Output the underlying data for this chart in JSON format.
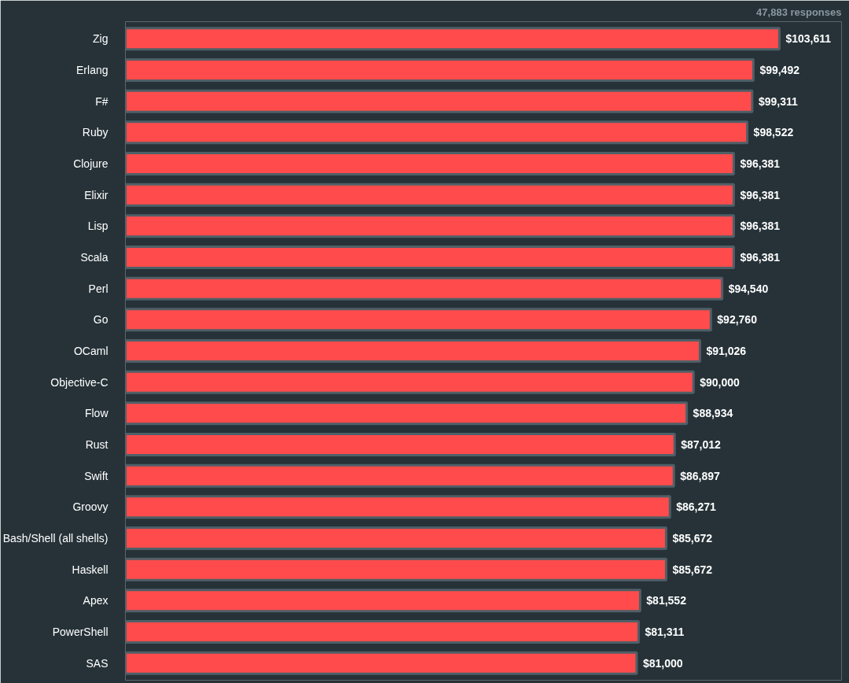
{
  "chart_data": {
    "type": "bar",
    "orientation": "horizontal",
    "categories": [
      "Zig",
      "Erlang",
      "F#",
      "Ruby",
      "Clojure",
      "Elixir",
      "Lisp",
      "Scala",
      "Perl",
      "Go",
      "OCaml",
      "Objective-C",
      "Flow",
      "Rust",
      "Swift",
      "Groovy",
      "Bash/Shell (all shells)",
      "Haskell",
      "Apex",
      "PowerShell",
      "SAS"
    ],
    "values": [
      103611,
      99492,
      99311,
      98522,
      96381,
      96381,
      96381,
      96381,
      94540,
      92760,
      91026,
      90000,
      88934,
      87012,
      86897,
      86271,
      85672,
      85672,
      81552,
      81311,
      81000
    ],
    "value_labels": [
      "$103,611",
      "$99,492",
      "$99,311",
      "$98,522",
      "$96,381",
      "$96,381",
      "$96,381",
      "$96,381",
      "$94,540",
      "$92,760",
      "$91,026",
      "$90,000",
      "$88,934",
      "$87,012",
      "$86,897",
      "$86,271",
      "$85,672",
      "$85,672",
      "$81,552",
      "$81,311",
      "$81,000"
    ],
    "color": "#ff4b4b",
    "annotations": [
      "47,883 responses"
    ],
    "grid": false
  }
}
